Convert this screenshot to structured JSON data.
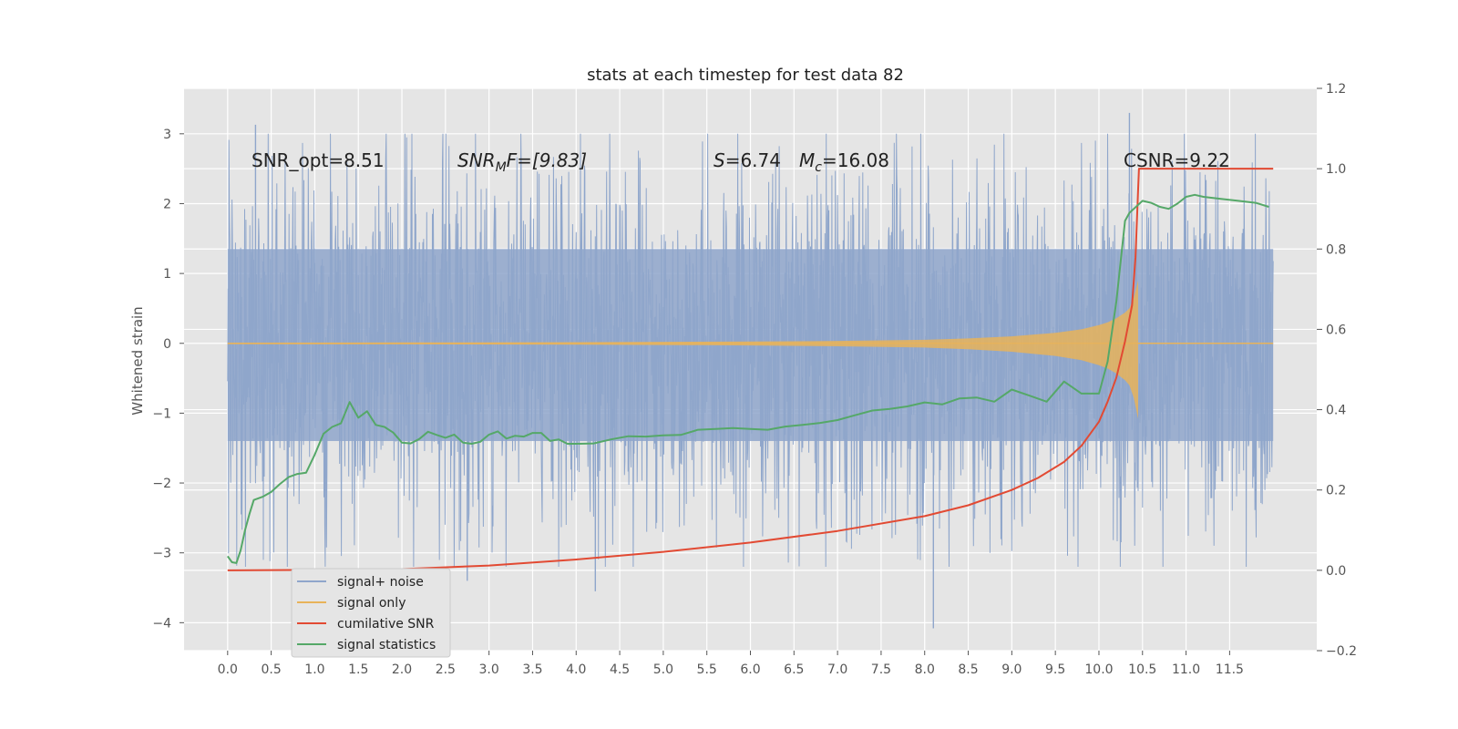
{
  "chart_data": {
    "type": "line",
    "title": "stats at each timestep for test data 82",
    "ylabel": "Whitened strain",
    "xlabel": "",
    "xlim": [
      -0.5,
      12.5
    ],
    "ylim": [
      -4.4,
      3.65
    ],
    "y2lim": [
      -0.2,
      1.2
    ],
    "grid": true,
    "legend_position": "lower-left",
    "x_ticks": [
      0.0,
      0.5,
      1.0,
      1.5,
      2.0,
      2.5,
      3.0,
      3.5,
      4.0,
      4.5,
      5.0,
      5.5,
      6.0,
      6.5,
      7.0,
      7.5,
      8.0,
      8.5,
      9.0,
      9.5,
      10.0,
      10.5,
      11.0,
      11.5
    ],
    "x_tick_labels": [
      "0.0",
      "0.5",
      "1.0",
      "1.5",
      "2.0",
      "2.5",
      "3.0",
      "3.5",
      "4.0",
      "4.5",
      "5.0",
      "5.5",
      "6.0",
      "6.5",
      "7.0",
      "7.5",
      "8.0",
      "8.5",
      "9.0",
      "9.5",
      "10.0",
      "10.5",
      "11.0",
      "11.5"
    ],
    "y_ticks": [
      -4,
      -3,
      -2,
      -1,
      0,
      1,
      2,
      3
    ],
    "y_tick_labels": [
      "−4",
      "−3",
      "−2",
      "−1",
      "0",
      "1",
      "2",
      "3"
    ],
    "y2_ticks": [
      -0.2,
      0.0,
      0.2,
      0.4,
      0.6,
      0.8,
      1.0,
      1.2
    ],
    "y2_tick_labels": [
      "−0.2",
      "0.0",
      "0.2",
      "0.4",
      "0.6",
      "0.8",
      "1.0",
      "1.2"
    ],
    "annotations": {
      "snr_opt": "SNR_opt=8.51",
      "snr_mf": "SNR",
      "snr_mf_sub": "M",
      "snr_mf_rest": "F=[9.83]",
      "s_sym": "S",
      "s_val": "=6.74",
      "mc_sym": "M",
      "mc_sub": "c",
      "mc_val": "=16.08",
      "csnr": "CSNR=9.22"
    },
    "series": [
      {
        "name": "signal+ noise",
        "color": "#8fa6cb",
        "axis": "left",
        "x_range": [
          0.0,
          12.0
        ],
        "typical_range": [
          -1.4,
          1.35
        ],
        "extremes": [
          {
            "x": 0.32,
            "y": 3.13
          },
          {
            "x": 2.75,
            "y": -3.4
          },
          {
            "x": 4.22,
            "y": -3.55
          },
          {
            "x": 8.1,
            "y": -4.08
          },
          {
            "x": 10.35,
            "y": 3.3
          }
        ]
      },
      {
        "name": "signal only",
        "color": "#e8b35a",
        "axis": "left",
        "x": [
          0.0,
          2.0,
          4.0,
          6.0,
          7.0,
          8.0,
          8.5,
          9.0,
          9.5,
          9.8,
          10.0,
          10.1,
          10.2,
          10.3,
          10.35,
          10.4,
          10.45
        ],
        "envelope": [
          0.01,
          0.012,
          0.016,
          0.025,
          0.035,
          0.05,
          0.07,
          0.1,
          0.15,
          0.2,
          0.26,
          0.3,
          0.36,
          0.44,
          0.5,
          0.65,
          0.9
        ],
        "tail_x_end": 12.0
      },
      {
        "name": "cumilative SNR",
        "color": "#e24a33",
        "axis": "right",
        "x": [
          0.0,
          1.0,
          2.0,
          3.0,
          4.0,
          5.0,
          6.0,
          7.0,
          8.0,
          8.5,
          9.0,
          9.3,
          9.6,
          9.8,
          10.0,
          10.1,
          10.2,
          10.3,
          10.38,
          10.42,
          10.45,
          10.46,
          12.0
        ],
        "values": [
          0.0,
          0.001,
          0.003,
          0.012,
          0.027,
          0.046,
          0.069,
          0.098,
          0.135,
          0.162,
          0.2,
          0.23,
          0.27,
          0.31,
          0.37,
          0.42,
          0.48,
          0.57,
          0.66,
          0.78,
          0.95,
          1.0,
          1.0
        ]
      },
      {
        "name": "signal statistics",
        "color": "#55a868",
        "axis": "right",
        "x": [
          0.0,
          0.05,
          0.1,
          0.15,
          0.2,
          0.25,
          0.3,
          0.4,
          0.5,
          0.6,
          0.7,
          0.8,
          0.9,
          1.0,
          1.1,
          1.2,
          1.3,
          1.4,
          1.5,
          1.6,
          1.7,
          1.8,
          1.9,
          2.0,
          2.1,
          2.2,
          2.3,
          2.4,
          2.5,
          2.6,
          2.7,
          2.8,
          2.9,
          3.0,
          3.1,
          3.2,
          3.3,
          3.4,
          3.5,
          3.6,
          3.7,
          3.8,
          3.9,
          4.0,
          4.2,
          4.4,
          4.6,
          4.8,
          5.0,
          5.2,
          5.4,
          5.6,
          5.8,
          6.0,
          6.2,
          6.4,
          6.6,
          6.8,
          7.0,
          7.2,
          7.4,
          7.6,
          7.8,
          8.0,
          8.2,
          8.4,
          8.6,
          8.8,
          9.0,
          9.2,
          9.4,
          9.6,
          9.8,
          10.0,
          10.1,
          10.2,
          10.3,
          10.35,
          10.4,
          10.5,
          10.6,
          10.7,
          10.8,
          10.9,
          11.0,
          11.1,
          11.2,
          11.4,
          11.6,
          11.8,
          11.95
        ],
        "values": [
          0.035,
          0.02,
          0.018,
          0.05,
          0.1,
          0.14,
          0.175,
          0.183,
          0.195,
          0.215,
          0.232,
          0.24,
          0.243,
          0.288,
          0.34,
          0.357,
          0.366,
          0.419,
          0.38,
          0.396,
          0.362,
          0.357,
          0.343,
          0.318,
          0.316,
          0.327,
          0.345,
          0.337,
          0.33,
          0.338,
          0.318,
          0.315,
          0.32,
          0.338,
          0.346,
          0.328,
          0.335,
          0.333,
          0.342,
          0.342,
          0.322,
          0.326,
          0.315,
          0.315,
          0.316,
          0.326,
          0.334,
          0.333,
          0.336,
          0.337,
          0.35,
          0.352,
          0.354,
          0.352,
          0.35,
          0.358,
          0.362,
          0.367,
          0.374,
          0.386,
          0.398,
          0.402,
          0.408,
          0.418,
          0.413,
          0.428,
          0.43,
          0.42,
          0.45,
          0.435,
          0.42,
          0.47,
          0.44,
          0.44,
          0.52,
          0.67,
          0.87,
          0.89,
          0.9,
          0.92,
          0.915,
          0.905,
          0.9,
          0.913,
          0.93,
          0.935,
          0.93,
          0.925,
          0.92,
          0.915,
          0.905
        ]
      }
    ]
  }
}
